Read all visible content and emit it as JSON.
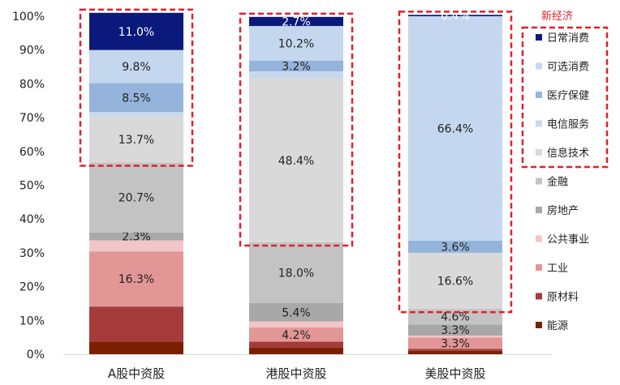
{
  "chart_data": {
    "type": "bar",
    "stacked": true,
    "ylim": [
      0,
      100
    ],
    "yticks": [
      "0%",
      "10%",
      "20%",
      "30%",
      "40%",
      "50%",
      "60%",
      "70%",
      "80%",
      "90%",
      "100%"
    ],
    "categories": [
      "A股中资股",
      "港股中资股",
      "美股中资股"
    ],
    "series": [
      {
        "name": "能源",
        "color": "#7a1f00",
        "values": [
          3.6,
          2.0,
          1.0
        ]
      },
      {
        "name": "原材料",
        "color": "#a43a3a",
        "values": [
          10.5,
          1.7,
          0.6
        ]
      },
      {
        "name": "工业",
        "color": "#e29696",
        "values": [
          16.3,
          4.2,
          3.3
        ]
      },
      {
        "name": "公共事业",
        "color": "#f2c6c6",
        "values": [
          3.3,
          1.8,
          0.6
        ]
      },
      {
        "name": "房地产",
        "color": "#a8a8a8",
        "values": [
          2.3,
          5.4,
          3.3
        ]
      },
      {
        "name": "金融",
        "color": "#c3c3c3",
        "values": [
          20.7,
          18.0,
          4.6
        ]
      },
      {
        "name": "信息技术",
        "color": "#d9d9d9",
        "values": [
          13.7,
          48.4,
          16.6
        ]
      },
      {
        "name": "电信服务",
        "color": "#c8d9ee",
        "values": [
          1.3,
          2.2,
          0.0
        ]
      },
      {
        "name": "医疗保健",
        "color": "#94b4dc",
        "values": [
          8.5,
          3.2,
          3.6
        ]
      },
      {
        "name": "可选消费",
        "color": "#c4d7ee",
        "values": [
          9.8,
          10.2,
          66.4
        ]
      },
      {
        "name": "日常消费",
        "color": "#0b1a7a",
        "values": [
          11.0,
          2.7,
          0.4
        ]
      }
    ],
    "data_labels": [
      [
        "",
        "",
        "16.3%",
        "",
        "2.3%",
        "20.7%",
        "13.7%",
        "",
        "8.5%",
        "9.8%",
        "11.0%"
      ],
      [
        "",
        "",
        "4.2%",
        "",
        "5.4%",
        "18.0%",
        "48.4%",
        "",
        "3.2%",
        "10.2%",
        "2.7%"
      ],
      [
        "",
        "",
        "3.3%",
        "",
        "3.3%",
        "4.6%",
        "16.6%",
        "",
        "3.6%",
        "66.4%",
        "0.4%"
      ]
    ],
    "legend_title": "新经济",
    "legend_position": "right",
    "highlight": "dashed red boxes around 新经济 sectors"
  }
}
